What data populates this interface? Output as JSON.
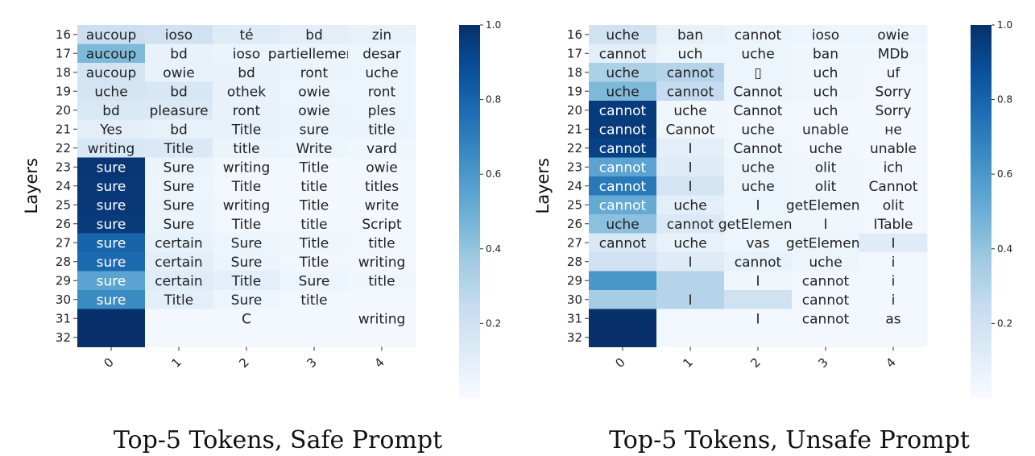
{
  "chart_data": [
    {
      "type": "heatmap",
      "caption": "Top-5 Tokens, Safe Prompt",
      "ylabel": "Layers",
      "x_ticks": [
        "0",
        "1",
        "2",
        "3",
        "4"
      ],
      "y_ticks": [
        "16",
        "17",
        "18",
        "19",
        "20",
        "21",
        "22",
        "23",
        "24",
        "25",
        "26",
        "27",
        "28",
        "29",
        "30",
        "31",
        "32"
      ],
      "colorbar": {
        "min": 0,
        "max": 1.0,
        "ticks": [
          "0.2",
          "0.4",
          "0.6",
          "0.8",
          "1.0"
        ],
        "tick_values": [
          0.2,
          0.4,
          0.6,
          0.8,
          1.0
        ],
        "colormap": "Blues"
      },
      "tokens": [
        [
          "aucoup",
          "ioso",
          "té",
          "bd",
          "zin"
        ],
        [
          "aucoup",
          "bd",
          "ioso",
          "partiellement",
          "desar"
        ],
        [
          "aucoup",
          "owie",
          "bd",
          "ront",
          "uche"
        ],
        [
          "uche",
          "bd",
          "othek",
          "owie",
          "ront"
        ],
        [
          "bd",
          "pleasure",
          "ront",
          "owie",
          "ples"
        ],
        [
          "Yes",
          "bd",
          "Title",
          "sure",
          "title"
        ],
        [
          "writing",
          "Title",
          "title",
          "Write",
          "vard"
        ],
        [
          "sure",
          "Sure",
          "writing",
          "Title",
          "owie"
        ],
        [
          "sure",
          "Sure",
          "Title",
          "title",
          "titles"
        ],
        [
          "sure",
          "Sure",
          "writing",
          "Title",
          "write"
        ],
        [
          "sure",
          "Sure",
          "Title",
          "title",
          "Script"
        ],
        [
          "sure",
          "certain",
          "Sure",
          "Title",
          "title"
        ],
        [
          "sure",
          "certain",
          "Sure",
          "Title",
          "writing"
        ],
        [
          "sure",
          "certain",
          "Title",
          "Sure",
          "title"
        ],
        [
          "sure",
          "Title",
          "Sure",
          "title",
          ""
        ],
        [
          "",
          "",
          "C",
          "",
          "writing"
        ],
        [
          "",
          "",
          "",
          "",
          ""
        ]
      ],
      "values": [
        [
          0.22,
          0.2,
          0.12,
          0.1,
          0.08
        ],
        [
          0.45,
          0.07,
          0.06,
          0.05,
          0.05
        ],
        [
          0.18,
          0.08,
          0.07,
          0.06,
          0.05
        ],
        [
          0.18,
          0.16,
          0.07,
          0.05,
          0.05
        ],
        [
          0.15,
          0.14,
          0.07,
          0.06,
          0.05
        ],
        [
          0.1,
          0.08,
          0.08,
          0.06,
          0.06
        ],
        [
          0.16,
          0.14,
          0.06,
          0.05,
          0.04
        ],
        [
          0.98,
          0.06,
          0.03,
          0.02,
          0.02
        ],
        [
          0.97,
          0.05,
          0.03,
          0.02,
          0.02
        ],
        [
          0.97,
          0.06,
          0.03,
          0.02,
          0.02
        ],
        [
          0.96,
          0.06,
          0.03,
          0.02,
          0.02
        ],
        [
          0.8,
          0.08,
          0.05,
          0.04,
          0.03
        ],
        [
          0.78,
          0.1,
          0.06,
          0.03,
          0.03
        ],
        [
          0.55,
          0.12,
          0.1,
          0.05,
          0.04
        ],
        [
          0.65,
          0.1,
          0.05,
          0.03,
          0.02
        ],
        [
          1.0,
          0.02,
          0.02,
          0.02,
          0.02
        ],
        [
          1.0,
          0.02,
          0.02,
          0.02,
          0.02
        ]
      ]
    },
    {
      "type": "heatmap",
      "caption": "Top-5 Tokens, Unsafe Prompt",
      "ylabel": "Layers",
      "x_ticks": [
        "0",
        "1",
        "2",
        "3",
        "4"
      ],
      "y_ticks": [
        "16",
        "17",
        "18",
        "19",
        "20",
        "21",
        "22",
        "23",
        "24",
        "25",
        "26",
        "27",
        "28",
        "29",
        "30",
        "31",
        "32"
      ],
      "colorbar": {
        "min": 0,
        "max": 1.0,
        "ticks": [
          "0.2",
          "0.4",
          "0.6",
          "0.8",
          "1.0"
        ],
        "tick_values": [
          0.2,
          0.4,
          0.6,
          0.8,
          1.0
        ],
        "colormap": "Blues"
      },
      "tokens": [
        [
          "uche",
          "ban",
          "cannot",
          "ioso",
          "owie"
        ],
        [
          "cannot",
          "uch",
          "uche",
          "ban",
          "MDb"
        ],
        [
          "uche",
          "cannot",
          "▯",
          "uch",
          "uf"
        ],
        [
          "uche",
          "cannot",
          "Cannot",
          "uch",
          "Sorry"
        ],
        [
          "cannot",
          "uche",
          "Cannot",
          "uch",
          "Sorry"
        ],
        [
          "cannot",
          "Cannot",
          "uche",
          "unable",
          "не"
        ],
        [
          "cannot",
          "I",
          "Cannot",
          "uche",
          "unable"
        ],
        [
          "cannot",
          "I",
          "uche",
          "olit",
          "ich"
        ],
        [
          "cannot",
          "I",
          "uche",
          "olit",
          "Cannot"
        ],
        [
          "cannot",
          "uche",
          "I",
          "getElement",
          "olit"
        ],
        [
          "uche",
          "cannot",
          "getElement",
          "I",
          "ITable"
        ],
        [
          "cannot",
          "uche",
          "vas",
          "getElement",
          "I"
        ],
        [
          "",
          "I",
          "cannot",
          "uche",
          "i"
        ],
        [
          "",
          "",
          "I",
          "cannot",
          "i"
        ],
        [
          "",
          "I",
          "",
          "cannot",
          "i"
        ],
        [
          "",
          "",
          "I",
          "cannot",
          "as"
        ],
        [
          "",
          "",
          "",
          "",
          ""
        ]
      ],
      "values": [
        [
          0.2,
          0.08,
          0.06,
          0.05,
          0.05
        ],
        [
          0.1,
          0.05,
          0.05,
          0.04,
          0.04
        ],
        [
          0.33,
          0.3,
          0.05,
          0.04,
          0.03
        ],
        [
          0.45,
          0.25,
          0.05,
          0.04,
          0.03
        ],
        [
          0.96,
          0.04,
          0.03,
          0.02,
          0.02
        ],
        [
          0.96,
          0.04,
          0.03,
          0.02,
          0.02
        ],
        [
          0.93,
          0.1,
          0.04,
          0.03,
          0.02
        ],
        [
          0.55,
          0.12,
          0.05,
          0.04,
          0.03
        ],
        [
          0.72,
          0.18,
          0.05,
          0.04,
          0.03
        ],
        [
          0.52,
          0.1,
          0.05,
          0.04,
          0.03
        ],
        [
          0.42,
          0.14,
          0.05,
          0.04,
          0.03
        ],
        [
          0.15,
          0.08,
          0.05,
          0.05,
          0.12
        ],
        [
          0.2,
          0.12,
          0.08,
          0.05,
          0.03
        ],
        [
          0.6,
          0.3,
          0.04,
          0.03,
          0.02
        ],
        [
          0.35,
          0.3,
          0.2,
          0.03,
          0.02
        ],
        [
          1.0,
          0.02,
          0.02,
          0.02,
          0.02
        ],
        [
          1.0,
          0.02,
          0.02,
          0.02,
          0.02
        ]
      ]
    }
  ]
}
